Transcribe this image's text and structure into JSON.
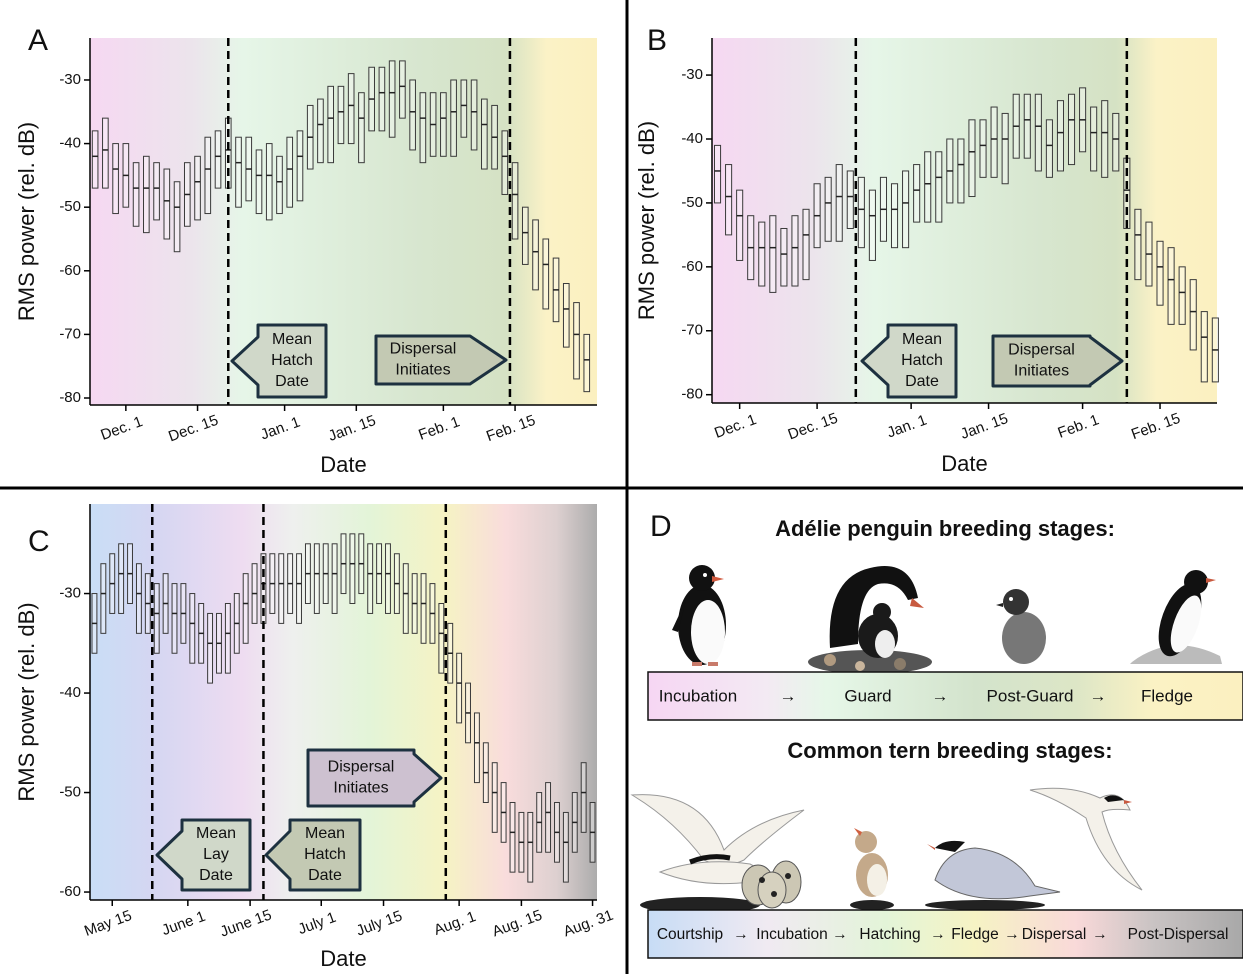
{
  "chart_data": [
    {
      "type": "box",
      "panel_label": "A",
      "xlabel": "Date",
      "ylabel": "RMS power (rel. dB)",
      "x": [
        -6,
        -4,
        -2,
        0,
        2,
        4,
        6,
        8,
        10,
        12,
        14,
        16,
        18,
        20,
        22,
        24,
        26,
        28,
        30,
        32,
        34,
        36,
        38,
        40,
        42,
        44,
        46,
        48,
        50,
        52,
        54,
        56,
        58,
        60,
        62,
        64,
        66,
        68,
        70,
        72,
        74,
        76,
        78,
        80,
        82,
        84,
        86,
        88,
        90
      ],
      "median": [
        -42,
        -41,
        -44,
        -45,
        -47,
        -47,
        -47,
        -49,
        -50,
        -48,
        -46,
        -44,
        -42,
        -41,
        -43,
        -44,
        -45,
        -45,
        -46,
        -44,
        -42,
        -39,
        -37,
        -36,
        -35,
        -34,
        -36,
        -33,
        -32,
        -32,
        -31,
        -35,
        -36,
        -37,
        -36,
        -35,
        -34,
        -35,
        -37,
        -39,
        -42,
        -48,
        -54,
        -57,
        -59,
        -63,
        -66,
        -70,
        -74
      ],
      "low": [
        -47,
        -47,
        -51,
        -50,
        -53,
        -54,
        -52,
        -55,
        -57,
        -53,
        -52,
        -51,
        -47,
        -47,
        -50,
        -49,
        -51,
        -52,
        -51,
        -50,
        -49,
        -44,
        -43,
        -43,
        -40,
        -40,
        -43,
        -38,
        -38,
        -39,
        -36,
        -41,
        -43,
        -42,
        -42,
        -42,
        -39,
        -41,
        -44,
        -44,
        -48,
        -55,
        -59,
        -63,
        -66,
        -68,
        -72,
        -77,
        -79
      ],
      "high": [
        -38,
        -36,
        -40,
        -40,
        -43,
        -42,
        -43,
        -44,
        -46,
        -43,
        -42,
        -39,
        -38,
        -36,
        -39,
        -39,
        -41,
        -40,
        -42,
        -39,
        -38,
        -34,
        -33,
        -31,
        -31,
        -29,
        -32,
        -28,
        -28,
        -27,
        -27,
        -30,
        -32,
        -32,
        -32,
        -30,
        -30,
        -30,
        -33,
        -34,
        -38,
        -43,
        -50,
        -52,
        -55,
        -58,
        -62,
        -65,
        -70
      ],
      "xlim": [
        -7,
        92
      ],
      "ylim": [
        -81.1,
        -23.4
      ],
      "xticks": [
        {
          "value": 0,
          "label": "Dec. 1"
        },
        {
          "value": 14,
          "label": "Dec. 15"
        },
        {
          "value": 31,
          "label": "Jan. 1"
        },
        {
          "value": 45,
          "label": "Jan. 15"
        },
        {
          "value": 62,
          "label": "Feb. 1"
        },
        {
          "value": 76,
          "label": "Feb. 15"
        }
      ],
      "yticks": [
        -30,
        -40,
        -50,
        -60,
        -70,
        -80
      ],
      "vlines": [
        20,
        75
      ],
      "annotations": [
        {
          "lines": [
            "Mean",
            "Hatch",
            "Date"
          ],
          "direction": "left"
        },
        {
          "lines": [
            "Dispersal",
            "Initiates"
          ],
          "direction": "right"
        }
      ]
    },
    {
      "type": "box",
      "panel_label": "B",
      "xlabel": "Date",
      "ylabel": "RMS power (rel. dB)",
      "x": [
        -4,
        -2,
        0,
        2,
        4,
        6,
        8,
        10,
        12,
        14,
        16,
        18,
        20,
        22,
        24,
        26,
        28,
        30,
        32,
        34,
        36,
        38,
        40,
        42,
        44,
        46,
        48,
        50,
        52,
        54,
        56,
        58,
        60,
        62,
        64,
        66,
        68,
        70,
        72,
        74,
        76,
        78,
        80,
        82,
        84,
        86
      ],
      "median": [
        -45,
        -49,
        -52,
        -57,
        -57,
        -57,
        -58,
        -57,
        -55,
        -52,
        -50,
        -49,
        -49,
        -51,
        -52,
        -51,
        -51,
        -50,
        -48,
        -47,
        -46,
        -45,
        -44,
        -42,
        -41,
        -40,
        -40,
        -38,
        -37,
        -38,
        -41,
        -39,
        -37,
        -37,
        -39,
        -39,
        -40,
        -48,
        -55,
        -58,
        -60,
        -62,
        -64,
        -67,
        -71,
        -73
      ],
      "low": [
        -50,
        -55,
        -59,
        -62,
        -63,
        -64,
        -63,
        -63,
        -62,
        -57,
        -56,
        -56,
        -54,
        -57,
        -59,
        -56,
        -57,
        -57,
        -53,
        -53,
        -53,
        -50,
        -50,
        -49,
        -46,
        -46,
        -47,
        -43,
        -43,
        -45,
        -46,
        -45,
        -44,
        -42,
        -45,
        -46,
        -45,
        -54,
        -62,
        -63,
        -66,
        -69,
        -69,
        -73,
        -78,
        -78
      ],
      "high": [
        -41,
        -44,
        -48,
        -52,
        -53,
        -52,
        -54,
        -52,
        -51,
        -47,
        -46,
        -44,
        -45,
        -46,
        -48,
        -46,
        -47,
        -45,
        -44,
        -42,
        -42,
        -40,
        -40,
        -37,
        -37,
        -35,
        -36,
        -33,
        -33,
        -33,
        -37,
        -34,
        -33,
        -32,
        -35,
        -34,
        -36,
        -43,
        -51,
        -53,
        -56,
        -57,
        -60,
        -62,
        -67,
        -68
      ],
      "xlim": [
        -5,
        86.3
      ],
      "ylim": [
        -81.3,
        -24.2
      ],
      "xticks": [
        {
          "value": 0,
          "label": "Dec. 1"
        },
        {
          "value": 14,
          "label": "Dec. 15"
        },
        {
          "value": 31,
          "label": "Jan. 1"
        },
        {
          "value": 45,
          "label": "Jan. 15"
        },
        {
          "value": 62,
          "label": "Feb. 1"
        },
        {
          "value": 76,
          "label": "Feb. 15"
        }
      ],
      "yticks": [
        -30,
        -40,
        -50,
        -60,
        -70,
        -80
      ],
      "vlines": [
        21,
        70
      ],
      "annotations": [
        {
          "lines": [
            "Mean",
            "Hatch",
            "Date"
          ],
          "direction": "left"
        },
        {
          "lines": [
            "Dispersal",
            "Initiates"
          ],
          "direction": "right"
        }
      ]
    },
    {
      "type": "box",
      "panel_label": "C",
      "xlabel": "Date",
      "ylabel": "RMS power (rel. dB)",
      "x": [
        -4,
        -2,
        0,
        2,
        4,
        6,
        8,
        10,
        12,
        14,
        16,
        18,
        20,
        22,
        24,
        26,
        28,
        30,
        32,
        34,
        36,
        38,
        40,
        42,
        44,
        46,
        48,
        50,
        52,
        54,
        56,
        58,
        60,
        62,
        64,
        66,
        68,
        70,
        72,
        74,
        76,
        78,
        80,
        82,
        84,
        86,
        88,
        90,
        92,
        94,
        96,
        98,
        100,
        102,
        104,
        106,
        108
      ],
      "median": [
        -33,
        -30,
        -29,
        -28,
        -28,
        -30,
        -31,
        -32,
        -31,
        -32,
        -32,
        -33,
        -34,
        -35,
        -35,
        -34,
        -33,
        -31,
        -30,
        -29,
        -29,
        -29,
        -29,
        -29,
        -28,
        -28,
        -28,
        -28,
        -27,
        -27,
        -27,
        -28,
        -28,
        -28,
        -29,
        -30,
        -31,
        -31,
        -32,
        -34,
        -36,
        -39,
        -42,
        -45,
        -48,
        -50,
        -52,
        -54,
        -55,
        -55,
        -53,
        -52,
        -54,
        -55,
        -53,
        -50,
        -54
      ],
      "low": [
        -36,
        -34,
        -32,
        -32,
        -31,
        -34,
        -34,
        -36,
        -34,
        -36,
        -35,
        -37,
        -37,
        -39,
        -38,
        -38,
        -36,
        -35,
        -33,
        -33,
        -32,
        -33,
        -32,
        -33,
        -31,
        -32,
        -31,
        -32,
        -30,
        -31,
        -30,
        -32,
        -31,
        -32,
        -32,
        -34,
        -34,
        -35,
        -35,
        -38,
        -39,
        -43,
        -45,
        -49,
        -51,
        -54,
        -55,
        -58,
        -58,
        -59,
        -56,
        -56,
        -57,
        -59,
        -56,
        -54,
        -57
      ],
      "high": [
        -30,
        -27,
        -26,
        -25,
        -25,
        -27,
        -28,
        -29,
        -28,
        -29,
        -29,
        -30,
        -31,
        -32,
        -32,
        -31,
        -30,
        -28,
        -27,
        -26,
        -26,
        -26,
        -26,
        -26,
        -25,
        -25,
        -25,
        -25,
        -24,
        -24,
        -24,
        -25,
        -25,
        -25,
        -26,
        -27,
        -28,
        -28,
        -29,
        -31,
        -33,
        -36,
        -39,
        -42,
        -45,
        -47,
        -49,
        -51,
        -52,
        -52,
        -50,
        -49,
        -51,
        -52,
        -50,
        -47,
        -51
      ],
      "xlim": [
        -5,
        109
      ],
      "ylim": [
        -60.8,
        -21
      ],
      "xticks": [
        {
          "value": 0,
          "label": "May 15"
        },
        {
          "value": 17,
          "label": "June 1"
        },
        {
          "value": 31,
          "label": "June 15"
        },
        {
          "value": 47,
          "label": "July 1"
        },
        {
          "value": 61,
          "label": "July 15"
        },
        {
          "value": 78,
          "label": "Aug. 1"
        },
        {
          "value": 92,
          "label": "Aug. 15"
        },
        {
          "value": 108,
          "label": "Aug. 31"
        }
      ],
      "yticks": [
        -30,
        -40,
        -50,
        -60
      ],
      "vlines": [
        9,
        34,
        75
      ],
      "annotations": [
        {
          "lines": [
            "Mean",
            "Lay",
            "Date"
          ],
          "direction": "left"
        },
        {
          "lines": [
            "Mean",
            "Hatch",
            "Date"
          ],
          "direction": "left"
        },
        {
          "lines": [
            "Dispersal",
            "Initiates"
          ],
          "direction": "right"
        }
      ]
    }
  ],
  "panel_d": {
    "label": "D",
    "separator": "→",
    "adelie": {
      "title": "Adélie penguin breeding stages:",
      "stages": [
        "Incubation",
        "Guard",
        "Post-Guard",
        "Fledge"
      ]
    },
    "tern": {
      "title": "Common tern breeding stages:",
      "stages": [
        "Courtship",
        "Incubation",
        "Hatching",
        "Fledge",
        "Dispersal",
        "Post-Dispersal"
      ]
    }
  }
}
